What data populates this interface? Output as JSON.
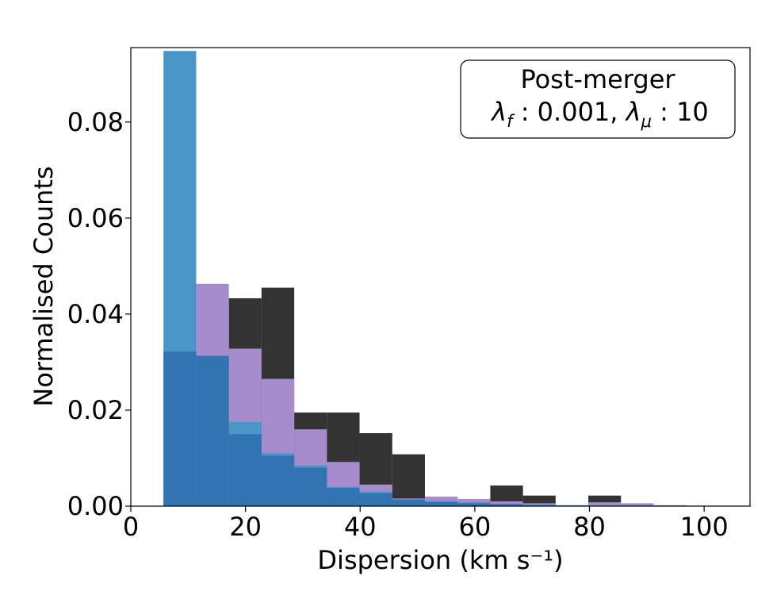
{
  "chart_data": {
    "type": "histogram",
    "xlabel": "Dispersion (km s⁻¹)",
    "ylabel": "Normalised Counts",
    "xlim": [
      0,
      108
    ],
    "ylim": [
      0,
      0.0955
    ],
    "x_ticks": [
      0,
      20,
      40,
      60,
      80,
      100
    ],
    "x_tick_labels": [
      "0",
      "20",
      "40",
      "60",
      "80",
      "100"
    ],
    "y_ticks": [
      0,
      0.02,
      0.04,
      0.06,
      0.08
    ],
    "y_tick_labels": [
      "0.00",
      "0.02",
      "0.04",
      "0.06",
      "0.08"
    ],
    "grid": false,
    "annotation": {
      "line1": "Post-merger",
      "line2_parts": [
        "λ",
        "f",
        " : 0.001, ",
        "λ",
        "μ",
        " : 10"
      ],
      "placement": "top-right"
    },
    "series": [
      {
        "color": "#333333",
        "bins": [
          {
            "x0": 17.1,
            "x1": 22.8,
            "y": 0.0433
          },
          {
            "x0": 22.8,
            "x1": 28.5,
            "y": 0.0455
          },
          {
            "x0": 28.5,
            "x1": 34.2,
            "y": 0.0195
          },
          {
            "x0": 34.2,
            "x1": 39.9,
            "y": 0.0195
          },
          {
            "x0": 39.9,
            "x1": 45.6,
            "y": 0.0152
          },
          {
            "x0": 45.6,
            "x1": 51.3,
            "y": 0.0108
          },
          {
            "x0": 51.3,
            "x1": 57.0,
            "y": 0.0012
          },
          {
            "x0": 57.0,
            "x1": 62.7,
            "y": 0.001
          },
          {
            "x0": 62.7,
            "x1": 68.4,
            "y": 0.0043
          },
          {
            "x0": 68.4,
            "x1": 74.1,
            "y": 0.0022
          },
          {
            "x0": 79.8,
            "x1": 85.5,
            "y": 0.0022
          }
        ]
      },
      {
        "color": "#a68ccc",
        "bins": [
          {
            "x0": 11.4,
            "x1": 17.1,
            "y": 0.0463
          },
          {
            "x0": 17.1,
            "x1": 22.8,
            "y": 0.0328
          },
          {
            "x0": 22.8,
            "x1": 28.5,
            "y": 0.0265
          },
          {
            "x0": 28.5,
            "x1": 34.2,
            "y": 0.016
          },
          {
            "x0": 34.2,
            "x1": 39.9,
            "y": 0.0092
          },
          {
            "x0": 39.9,
            "x1": 45.6,
            "y": 0.0045
          },
          {
            "x0": 45.6,
            "x1": 51.3,
            "y": 0.0016
          },
          {
            "x0": 51.3,
            "x1": 57.0,
            "y": 0.002
          },
          {
            "x0": 57.0,
            "x1": 62.7,
            "y": 0.0015
          },
          {
            "x0": 62.7,
            "x1": 68.4,
            "y": 0.001
          },
          {
            "x0": 68.4,
            "x1": 74.1,
            "y": 0.0006
          },
          {
            "x0": 79.8,
            "x1": 85.5,
            "y": 0.0008
          },
          {
            "x0": 85.5,
            "x1": 91.2,
            "y": 0.0006
          },
          {
            "x0": 91.2,
            "x1": 96.9,
            "y": 0.0002
          },
          {
            "x0": 96.9,
            "x1": 102.6,
            "y": 0.0001
          }
        ]
      },
      {
        "color": "#4a95c8",
        "bins": [
          {
            "x0": 5.7,
            "x1": 11.4,
            "y": 0.0948
          },
          {
            "x0": 11.4,
            "x1": 17.1,
            "y": 0.013
          },
          {
            "x0": 17.1,
            "x1": 22.8,
            "y": 0.0175
          },
          {
            "x0": 22.8,
            "x1": 28.5,
            "y": 0.011
          },
          {
            "x0": 28.5,
            "x1": 34.2,
            "y": 0.0085
          },
          {
            "x0": 34.2,
            "x1": 39.9,
            "y": 0.004
          },
          {
            "x0": 39.9,
            "x1": 45.6,
            "y": 0.003
          },
          {
            "x0": 45.6,
            "x1": 51.3,
            "y": 0.0015
          },
          {
            "x0": 51.3,
            "x1": 57.0,
            "y": 0.001
          },
          {
            "x0": 57.0,
            "x1": 62.7,
            "y": 0.0008
          },
          {
            "x0": 62.7,
            "x1": 68.4,
            "y": 0.0005
          },
          {
            "x0": 68.4,
            "x1": 74.1,
            "y": 0.0003
          },
          {
            "x0": 74.1,
            "x1": 79.8,
            "y": 0.0002
          },
          {
            "x0": 79.8,
            "x1": 85.5,
            "y": 0.0002
          },
          {
            "x0": 85.5,
            "x1": 91.2,
            "y": 0.0002
          },
          {
            "x0": 91.2,
            "x1": 96.9,
            "y": 0.0001
          },
          {
            "x0": 96.9,
            "x1": 102.6,
            "y": 0.0001
          },
          {
            "x0": 102.6,
            "x1": 108.3,
            "y": 0.0001
          }
        ]
      },
      {
        "color": "#3274b2",
        "bins": [
          {
            "x0": 5.7,
            "x1": 11.4,
            "y": 0.0322
          },
          {
            "x0": 11.4,
            "x1": 17.1,
            "y": 0.0313
          },
          {
            "x0": 17.1,
            "x1": 22.8,
            "y": 0.015
          },
          {
            "x0": 22.8,
            "x1": 28.5,
            "y": 0.0105
          },
          {
            "x0": 28.5,
            "x1": 34.2,
            "y": 0.008
          },
          {
            "x0": 34.2,
            "x1": 39.9,
            "y": 0.0038
          },
          {
            "x0": 39.9,
            "x1": 45.6,
            "y": 0.0027
          },
          {
            "x0": 45.6,
            "x1": 51.3,
            "y": 0.0013
          },
          {
            "x0": 51.3,
            "x1": 57.0,
            "y": 0.0009
          },
          {
            "x0": 57.0,
            "x1": 62.7,
            "y": 0.0006
          },
          {
            "x0": 62.7,
            "x1": 68.4,
            "y": 0.0004
          },
          {
            "x0": 68.4,
            "x1": 74.1,
            "y": 0.0002
          }
        ]
      }
    ]
  }
}
